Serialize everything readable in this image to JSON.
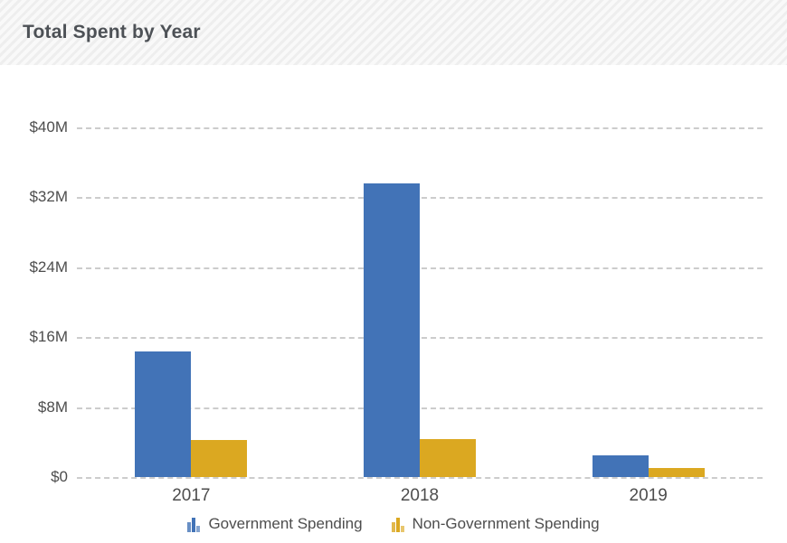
{
  "header": {
    "title": "Total Spent by Year"
  },
  "colors": {
    "government_blue": "#4273b7",
    "non_government_yellow": "#dba821",
    "axis_text": "#4d4d4d",
    "gridline": "#cccccc",
    "title_text": "#4d5156"
  },
  "chart_data": {
    "type": "bar",
    "title": "Total Spent by Year",
    "categories": [
      "2017",
      "2018",
      "2019"
    ],
    "series": [
      {
        "name": "Government Spending",
        "color": "#4273b7",
        "values": [
          14.4,
          33.6,
          2.5
        ]
      },
      {
        "name": "Non-Government Spending",
        "color": "#dba821",
        "values": [
          4.2,
          4.3,
          1.0
        ]
      }
    ],
    "xlabel": "",
    "ylabel": "",
    "ylim": [
      0,
      40
    ],
    "yticks": [
      {
        "value": 0,
        "label": "$0"
      },
      {
        "value": 8,
        "label": "$8M"
      },
      {
        "value": 16,
        "label": "$16M"
      },
      {
        "value": 24,
        "label": "$24M"
      },
      {
        "value": 32,
        "label": "$32M"
      },
      {
        "value": 40,
        "label": "$40M"
      }
    ],
    "grid": "horizontal-dashed",
    "legend_position": "bottom"
  }
}
